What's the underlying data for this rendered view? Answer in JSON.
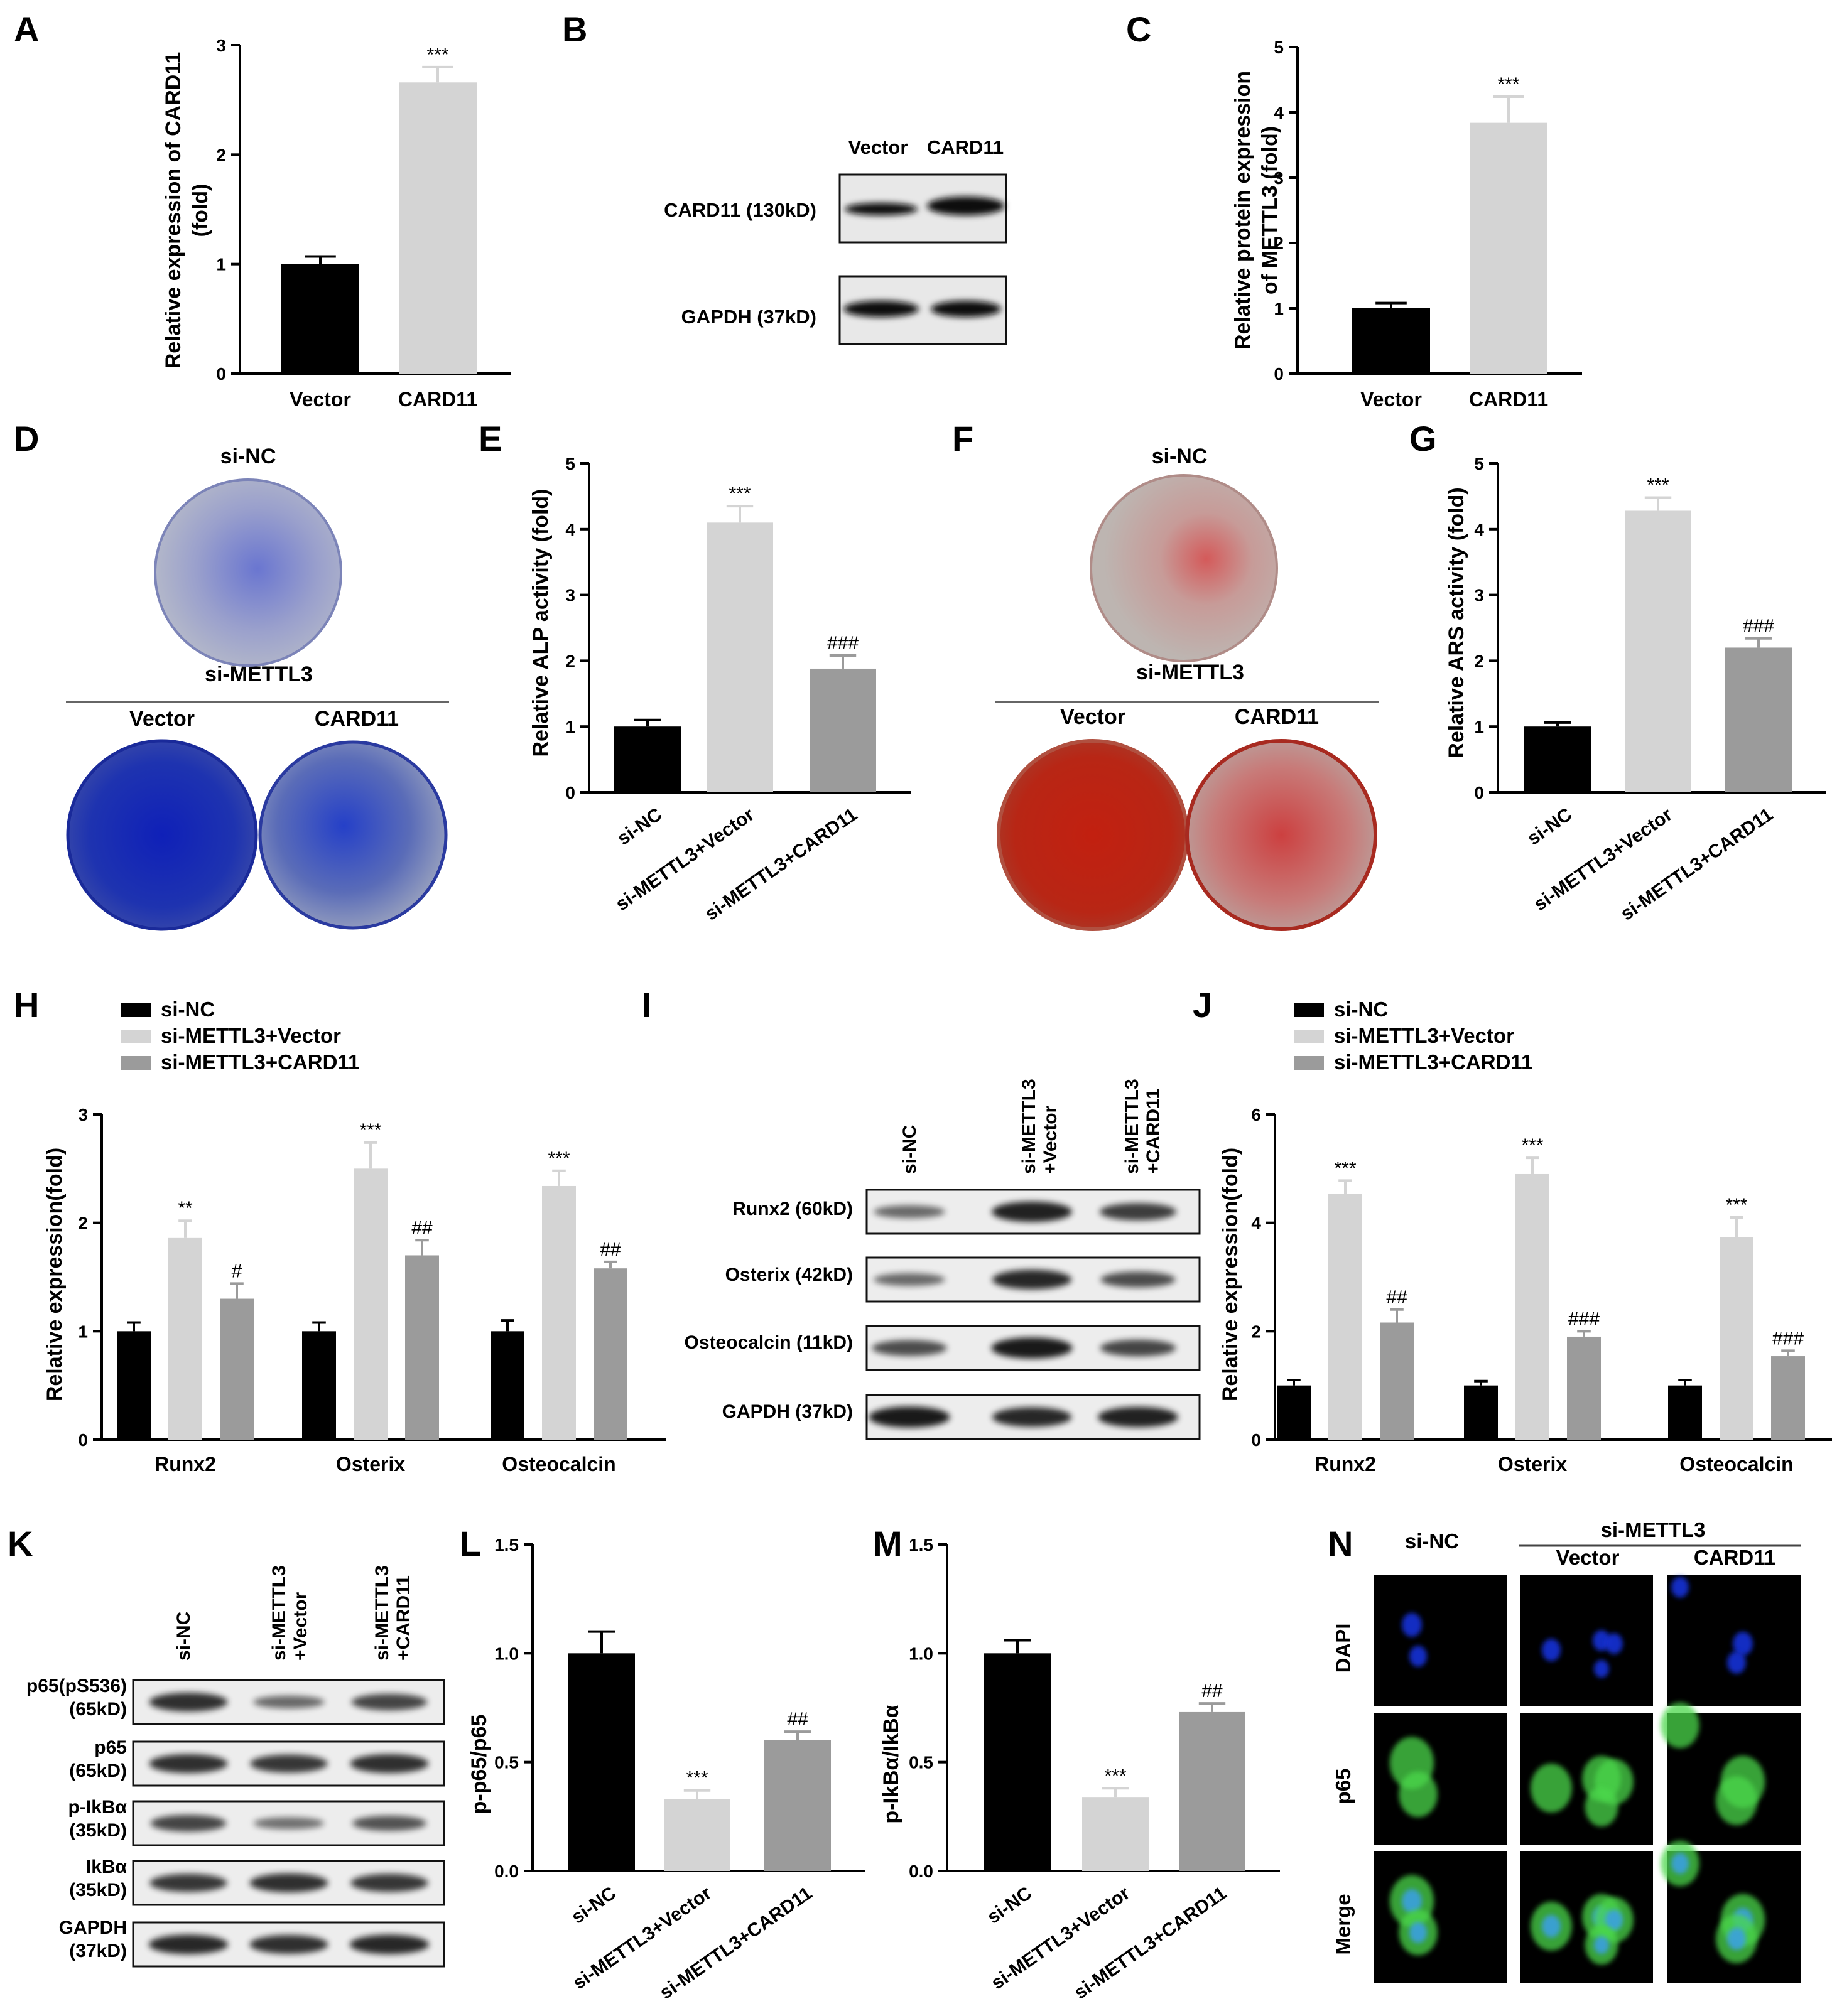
{
  "panel_letters": [
    "A",
    "B",
    "C",
    "D",
    "E",
    "F",
    "G",
    "H",
    "I",
    "J",
    "K",
    "L",
    "M",
    "N"
  ],
  "colors": {
    "black": "#000000",
    "light_gray": "#d4d4d4",
    "mid_gray": "#9b9b9b",
    "ars_red": "#c0281a",
    "alp_blue": "#1a2da0",
    "dapi_blue": "#1530d8",
    "p65_green": "#4bd84b"
  },
  "A": {
    "ylabel_line1": "Relative  expression of CARD11",
    "ylabel_line2": "(fold)"
  },
  "B": {
    "lanes": [
      "Vector",
      "CARD11"
    ],
    "rows": [
      "CARD11  (130kD)",
      "GAPDH  (37kD)"
    ]
  },
  "C": {
    "ylabel_line1": "Relative protein expression",
    "ylabel_line2": "of METTL3 (fold)"
  },
  "D": {
    "top": "si-NC",
    "group": "si-METTL3",
    "left": "Vector",
    "right": "CARD11"
  },
  "E": {
    "ylabel": "Relative ALP activity (fold)"
  },
  "F": {
    "top": "si-NC",
    "group": "si-METTL3",
    "left": "Vector",
    "right": "CARD11"
  },
  "G": {
    "ylabel": "Relative ARS activity (fold)"
  },
  "H": {
    "ylabel": "Relative expression(fold)"
  },
  "I": {
    "lanes": [
      [
        "si-NC"
      ],
      [
        "si-METTL3",
        "+Vector"
      ],
      [
        "si-METTL3",
        "+CARD11"
      ]
    ],
    "rows": [
      "Runx2 (60kD)",
      "Osterix (42kD)",
      "Osteocalcin (11kD)",
      "GAPDH (37kD)"
    ]
  },
  "J": {
    "ylabel": "Relative expression(fold)"
  },
  "K": {
    "lanes": [
      [
        "si-NC"
      ],
      [
        "si-METTL3",
        "+Vector"
      ],
      [
        "si-METTL3",
        "+CARD11"
      ]
    ],
    "rows": [
      [
        "p65(pS536)",
        "(65kD)"
      ],
      [
        "p65",
        "(65kD)"
      ],
      [
        "p-IkBα",
        "(35kD)"
      ],
      [
        "IkBα",
        "(35kD)"
      ],
      [
        "GAPDH",
        "(37kD)"
      ]
    ]
  },
  "L": {
    "ylabel": "p-p65/p65"
  },
  "M": {
    "ylabel": "p-IkBα/IkBα"
  },
  "N": {
    "col1": "si-NC",
    "group": "si-METTL3",
    "col2": "Vector",
    "col3": "CARD11",
    "rows": [
      "DAPI",
      "p65",
      "Merge"
    ]
  },
  "chart_data": [
    {
      "panel": "A",
      "type": "bar",
      "categories": [
        "Vector",
        "CARD11"
      ],
      "values": [
        1.0,
        2.66
      ],
      "errors": [
        0.07,
        0.14
      ],
      "annotations": [
        "",
        "***"
      ],
      "ylim": [
        0,
        3
      ],
      "yticks": [
        0,
        1,
        2,
        3
      ],
      "colors": [
        "#000000",
        "#d4d4d4"
      ]
    },
    {
      "panel": "C",
      "type": "bar",
      "categories": [
        "Vector",
        "CARD11"
      ],
      "values": [
        1.0,
        3.84
      ],
      "errors": [
        0.08,
        0.4
      ],
      "annotations": [
        "",
        "***"
      ],
      "ylim": [
        0,
        5
      ],
      "yticks": [
        0,
        1,
        2,
        3,
        4,
        5
      ],
      "colors": [
        "#000000",
        "#d4d4d4"
      ]
    },
    {
      "panel": "E",
      "type": "bar",
      "categories": [
        "si-NC",
        "si-METTL3+Vector",
        "si-METTL3+CARD11"
      ],
      "values": [
        1.0,
        4.1,
        1.88
      ],
      "errors": [
        0.1,
        0.25,
        0.2
      ],
      "annotations": [
        "",
        "***",
        "###"
      ],
      "ylim": [
        0,
        5
      ],
      "yticks": [
        0,
        1,
        2,
        3,
        4,
        5
      ],
      "colors": [
        "#000000",
        "#d4d4d4",
        "#9b9b9b"
      ]
    },
    {
      "panel": "G",
      "type": "bar",
      "categories": [
        "si-NC",
        "si-METTL3+Vector",
        "si-METTL3+CARD11"
      ],
      "values": [
        1.0,
        4.28,
        2.2
      ],
      "errors": [
        0.06,
        0.2,
        0.14
      ],
      "annotations": [
        "",
        "***",
        "###"
      ],
      "ylim": [
        0,
        5
      ],
      "yticks": [
        0,
        1,
        2,
        3,
        4,
        5
      ],
      "colors": [
        "#000000",
        "#d4d4d4",
        "#9b9b9b"
      ]
    },
    {
      "panel": "H",
      "type": "bar",
      "categories": [
        "Runx2",
        "Osterix",
        "Osteocalcin"
      ],
      "legend": "top",
      "series": [
        {
          "name": "si-NC",
          "values": [
            1.0,
            1.0,
            1.0
          ],
          "errors": [
            0.08,
            0.08,
            0.1
          ],
          "annotations": [
            "",
            "",
            ""
          ]
        },
        {
          "name": "si-METTL3+Vector",
          "values": [
            1.86,
            2.5,
            2.34
          ],
          "errors": [
            0.16,
            0.24,
            0.14
          ],
          "annotations": [
            "**",
            "***",
            "***"
          ]
        },
        {
          "name": "si-METTL3+CARD11",
          "values": [
            1.3,
            1.7,
            1.58
          ],
          "errors": [
            0.14,
            0.14,
            0.06
          ],
          "annotations": [
            "#",
            "##",
            "##"
          ]
        }
      ],
      "ylim": [
        0,
        3
      ],
      "yticks": [
        0,
        1,
        2,
        3
      ]
    },
    {
      "panel": "J",
      "type": "bar",
      "categories": [
        "Runx2",
        "Osterix",
        "Osteocalcin"
      ],
      "legend": "top",
      "series": [
        {
          "name": "si-NC",
          "values": [
            1.0,
            1.0,
            1.0
          ],
          "errors": [
            0.1,
            0.08,
            0.1
          ],
          "annotations": [
            "",
            "",
            ""
          ]
        },
        {
          "name": "si-METTL3+Vector",
          "values": [
            4.54,
            4.9,
            3.74
          ],
          "errors": [
            0.24,
            0.3,
            0.36
          ],
          "annotations": [
            "***",
            "***",
            "***"
          ]
        },
        {
          "name": "si-METTL3+CARD11",
          "values": [
            2.16,
            1.9,
            1.54
          ],
          "errors": [
            0.24,
            0.1,
            0.1
          ],
          "annotations": [
            "##",
            "###",
            "###"
          ]
        }
      ],
      "ylim": [
        0,
        6
      ],
      "yticks": [
        0,
        2,
        4,
        6
      ]
    },
    {
      "panel": "L",
      "type": "bar",
      "categories": [
        "si-NC",
        "si-METTL3+Vector",
        "si-METTL3+CARD11"
      ],
      "values": [
        1.0,
        0.33,
        0.6
      ],
      "errors": [
        0.1,
        0.04,
        0.04
      ],
      "annotations": [
        "",
        "***",
        "##"
      ],
      "ylim": [
        0,
        1.5
      ],
      "yticks": [
        "0.0",
        "0.5",
        "1.0",
        "1.5"
      ],
      "colors": [
        "#000000",
        "#d4d4d4",
        "#9b9b9b"
      ]
    },
    {
      "panel": "M",
      "type": "bar",
      "categories": [
        "si-NC",
        "si-METTL3+Vector",
        "si-METTL3+CARD11"
      ],
      "values": [
        1.0,
        0.34,
        0.73
      ],
      "errors": [
        0.06,
        0.04,
        0.04
      ],
      "annotations": [
        "",
        "***",
        "##"
      ],
      "ylim": [
        0,
        1.5
      ],
      "yticks": [
        "0.0",
        "0.5",
        "1.0",
        "1.5"
      ],
      "colors": [
        "#000000",
        "#d4d4d4",
        "#9b9b9b"
      ]
    }
  ]
}
